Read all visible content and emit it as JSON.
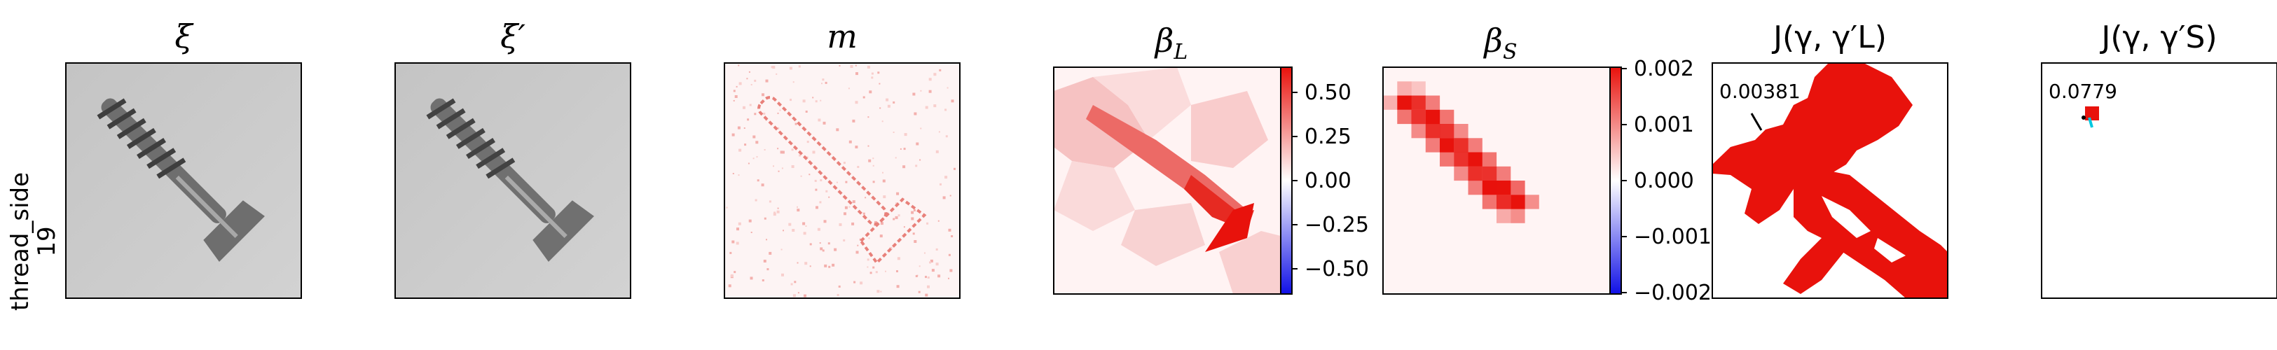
{
  "row_label": [
    "thread_side",
    "19"
  ],
  "panels": {
    "xi": {
      "title": "ξ"
    },
    "xi_prime": {
      "title": "ξ′"
    },
    "m": {
      "title": "m"
    },
    "beta_L": {
      "title_main": "β",
      "title_sub": "L",
      "colorbar": {
        "ticks": [
          "0.50",
          "0.25",
          "0.00",
          "−0.25",
          "−0.50"
        ]
      }
    },
    "beta_S": {
      "title_main": "β",
      "title_sub": "S",
      "colorbar": {
        "ticks": [
          "0.002",
          "0.001",
          "0.000",
          "−0.001",
          "−0.002"
        ]
      }
    },
    "J_L": {
      "title": "J(γ, γ′L)",
      "annotation": "0.00381"
    },
    "J_S": {
      "title": "J(γ, γ′S)",
      "annotation": "0.0779"
    }
  },
  "colors": {
    "positive": "#e8120c",
    "negative": "#1010e6",
    "cyan": "#00c8e0"
  }
}
